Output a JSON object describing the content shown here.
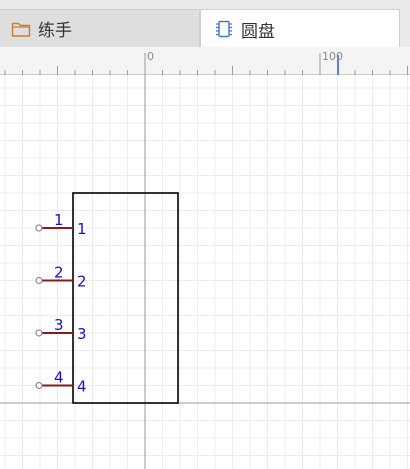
{
  "tabs": [
    {
      "label": "练手",
      "icon": "folder-icon",
      "active": false
    },
    {
      "label": "圆盘",
      "icon": "chip-icon",
      "active": true
    }
  ],
  "ruler": {
    "labels": [
      "0",
      "100"
    ]
  },
  "schematic": {
    "pins": [
      {
        "name": "1",
        "number": "1"
      },
      {
        "name": "2",
        "number": "2"
      },
      {
        "name": "3",
        "number": "3"
      },
      {
        "name": "4",
        "number": "4"
      }
    ]
  },
  "colors": {
    "pin_line": "#8b1a1a",
    "pin_text": "#1515c8",
    "body_outline": "#000000",
    "grid_minor": "#ececec",
    "grid_major": "#dcdcdc",
    "axis": "#9a9a9a",
    "ruler_marker": "#5b7fd6"
  }
}
